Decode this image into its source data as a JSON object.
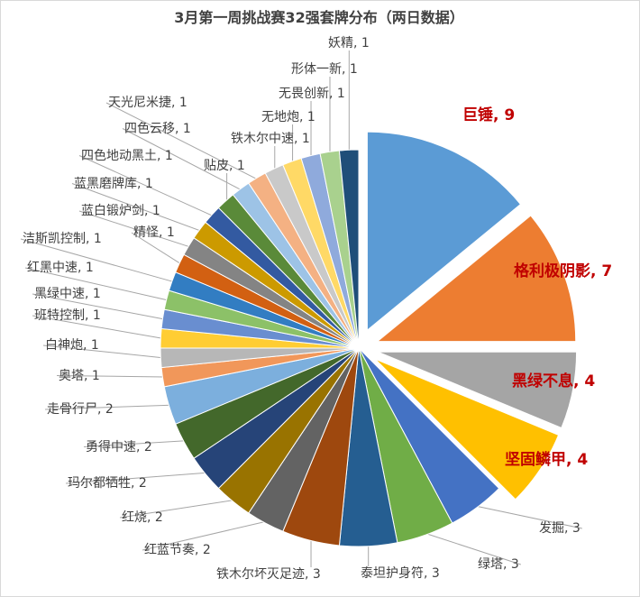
{
  "chart_data": {
    "type": "pie",
    "title": "3月第一周挑战赛32强套牌分布（两日数据）",
    "slices": [
      {
        "name": "巨锤",
        "value": 9,
        "color": "#5b9bd5",
        "highlight": true
      },
      {
        "name": "格利极阴影",
        "value": 7,
        "color": "#ed7d31",
        "highlight": true
      },
      {
        "name": "黑绿不息",
        "value": 4,
        "color": "#a5a5a5",
        "highlight": true
      },
      {
        "name": "坚固鳞甲",
        "value": 4,
        "color": "#ffc000",
        "highlight": true
      },
      {
        "name": "发掘",
        "value": 3,
        "color": "#4472c4",
        "highlight": false
      },
      {
        "name": "绿塔",
        "value": 3,
        "color": "#70ad47",
        "highlight": false
      },
      {
        "name": "泰坦护身符",
        "value": 3,
        "color": "#255e91",
        "highlight": false
      },
      {
        "name": "铁木尔坏灭足迹",
        "value": 3,
        "color": "#9e480e",
        "highlight": false
      },
      {
        "name": "红蓝节奏",
        "value": 2,
        "color": "#636363",
        "highlight": false
      },
      {
        "name": "红烧",
        "value": 2,
        "color": "#997300",
        "highlight": false
      },
      {
        "name": "玛尔都牺牲",
        "value": 2,
        "color": "#264478",
        "highlight": false
      },
      {
        "name": "勇得中速",
        "value": 2,
        "color": "#43682b",
        "highlight": false
      },
      {
        "name": "走骨行尸",
        "value": 2,
        "color": "#7cafdd",
        "highlight": false
      },
      {
        "name": "奥塔",
        "value": 1,
        "color": "#f1975a",
        "highlight": false
      },
      {
        "name": "白神炮",
        "value": 1,
        "color": "#b7b7b7",
        "highlight": false
      },
      {
        "name": "班特控制",
        "value": 1,
        "color": "#ffcd33",
        "highlight": false
      },
      {
        "name": "黑绿中速",
        "value": 1,
        "color": "#698ed0",
        "highlight": false
      },
      {
        "name": "红黑中速",
        "value": 1,
        "color": "#8cc168",
        "highlight": false
      },
      {
        "name": "洁斯凯控制",
        "value": 1,
        "color": "#327dc2",
        "highlight": false
      },
      {
        "name": "精怪",
        "value": 1,
        "color": "#d26012",
        "highlight": false
      },
      {
        "name": "蓝白锻炉剑",
        "value": 1,
        "color": "#848484",
        "highlight": false
      },
      {
        "name": "蓝黑磨牌库",
        "value": 1,
        "color": "#cc9a00",
        "highlight": false
      },
      {
        "name": "四色地动黑土",
        "value": 1,
        "color": "#335aa1",
        "highlight": false
      },
      {
        "name": "贴皮",
        "value": 1,
        "color": "#5a8a39",
        "highlight": false
      },
      {
        "name": "四色云移",
        "value": 1,
        "color": "#9dc3e6",
        "highlight": false
      },
      {
        "name": "天光尼米捷",
        "value": 1,
        "color": "#f4b183",
        "highlight": false
      },
      {
        "name": "铁木尔中速",
        "value": 1,
        "color": "#c9c9c9",
        "highlight": false
      },
      {
        "name": "无地炮",
        "value": 1,
        "color": "#ffd966",
        "highlight": false
      },
      {
        "name": "无畏创新",
        "value": 1,
        "color": "#8faadc",
        "highlight": false
      },
      {
        "name": "形体一新",
        "value": 1,
        "color": "#a9d18e",
        "highlight": false
      },
      {
        "name": "妖精",
        "value": 1,
        "color": "#1f4e79",
        "highlight": false
      }
    ]
  }
}
